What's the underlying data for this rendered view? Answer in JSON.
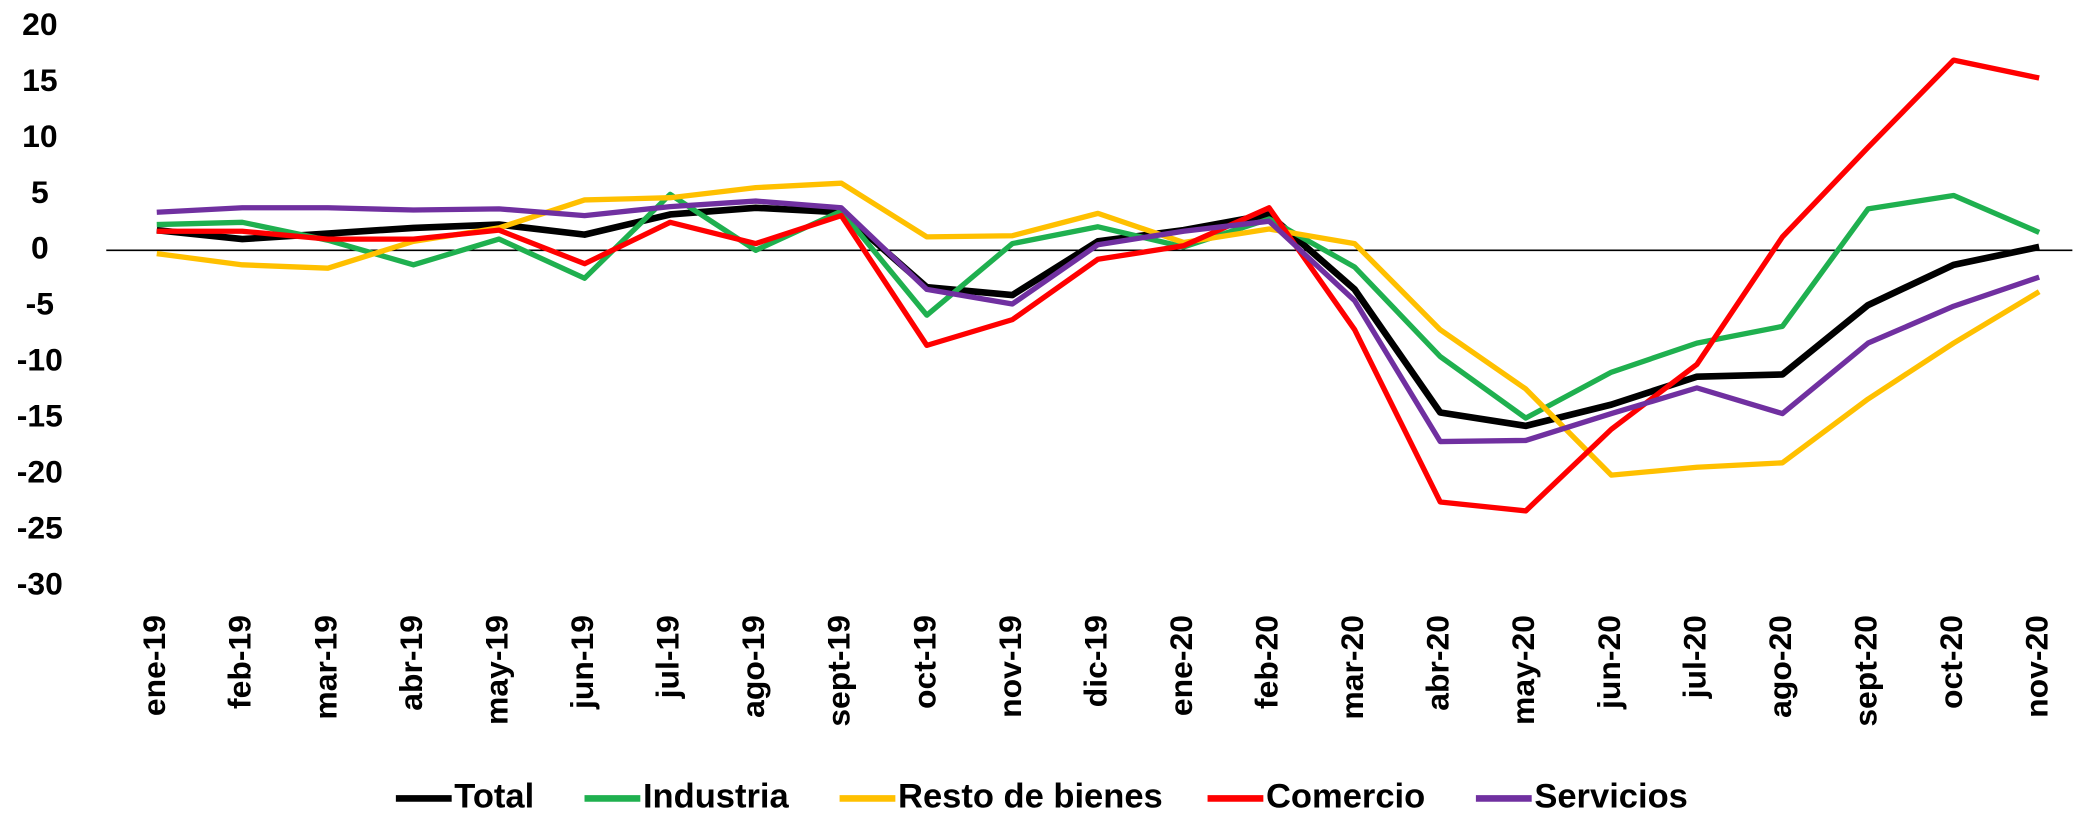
{
  "chart_data": {
    "type": "line",
    "categories": [
      "ene-19",
      "feb-19",
      "mar-19",
      "abr-19",
      "may-19",
      "jun-19",
      "jul-19",
      "ago-19",
      "sept-19",
      "oct-19",
      "nov-19",
      "dic-19",
      "ene-20",
      "feb-20",
      "mar-20",
      "abr-20",
      "may-20",
      "jun-20",
      "jul-20",
      "ago-20",
      "sept-20",
      "oct-20",
      "nov-20"
    ],
    "series": [
      {
        "name": "Total",
        "color": "#000000",
        "values": [
          1.8,
          1.0,
          1.5,
          2.0,
          2.3,
          1.4,
          3.2,
          3.8,
          3.4,
          -3.3,
          -4.0,
          0.8,
          1.8,
          3.2,
          -3.5,
          -14.5,
          -15.7,
          -13.8,
          -11.3,
          -11.1,
          -4.9,
          -1.3,
          0.3
        ]
      },
      {
        "name": "Industria",
        "color": "#1fb04f",
        "values": [
          2.3,
          2.5,
          0.9,
          -1.3,
          1.0,
          -2.5,
          5.0,
          0.0,
          3.5,
          -5.8,
          0.6,
          2.1,
          0.3,
          2.8,
          -1.5,
          -9.5,
          -15.0,
          -10.9,
          -8.3,
          -6.8,
          3.7,
          4.9,
          1.6
        ]
      },
      {
        "name": "Resto de bienes",
        "color": "#ffc000",
        "values": [
          -0.3,
          -1.3,
          -1.6,
          0.8,
          2.0,
          4.5,
          4.7,
          5.6,
          6.0,
          1.2,
          1.3,
          3.3,
          0.7,
          1.9,
          0.6,
          -7.1,
          -12.4,
          -20.1,
          -19.4,
          -19.0,
          -13.3,
          -8.3,
          -3.7
        ]
      },
      {
        "name": "Comercio",
        "color": "#ff0000",
        "values": [
          1.7,
          1.7,
          1.0,
          1.0,
          1.8,
          -1.2,
          2.5,
          0.6,
          3.1,
          -8.5,
          -6.2,
          -0.8,
          0.4,
          3.8,
          -7.1,
          -22.5,
          -23.3,
          -16.0,
          -10.2,
          1.2,
          9.2,
          17.0,
          15.4
        ]
      },
      {
        "name": "Servicios",
        "color": "#7030a0",
        "values": [
          3.4,
          3.8,
          3.8,
          3.6,
          3.7,
          3.1,
          3.9,
          4.4,
          3.8,
          -3.5,
          -4.8,
          0.5,
          1.7,
          2.6,
          -4.5,
          -17.1,
          -17.0,
          -14.6,
          -12.3,
          -14.6,
          -8.3,
          -5.0,
          -2.4
        ]
      }
    ],
    "ylim": [
      -30,
      20
    ],
    "yticks": [
      20,
      15,
      10,
      5,
      0,
      -5,
      -10,
      -15,
      -20,
      -25,
      -30
    ],
    "legend": "bottom"
  }
}
